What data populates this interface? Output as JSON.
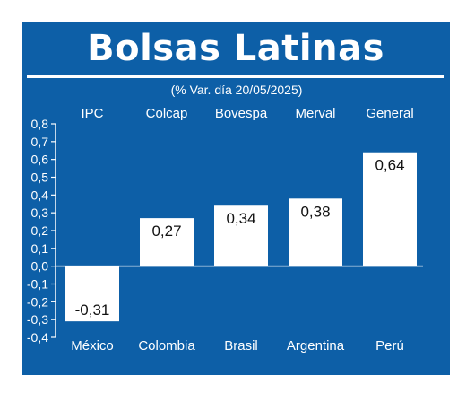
{
  "title": "Bolsas Latinas",
  "colors": {
    "background": "#0d5fa7",
    "bar": "#ffffff",
    "text": "#ffffff",
    "label_text": "#111111"
  },
  "chart_data": {
    "type": "bar",
    "title": "Bolsas Latinas",
    "subtitle": "(% Var. día 20/05/2025)",
    "index_names": [
      "IPC",
      "Colcap",
      "Bovespa",
      "Merval",
      "General"
    ],
    "categories": [
      "México",
      "Colombia",
      "Brasil",
      "Argentina",
      "Perú"
    ],
    "values": [
      -0.31,
      0.27,
      0.34,
      0.38,
      0.64
    ],
    "value_labels": [
      "-0,31",
      "0,27",
      "0,34",
      "0,38",
      "0,64"
    ],
    "ylim": [
      -0.4,
      0.8
    ],
    "y_ticks": [
      0.8,
      0.7,
      0.6,
      0.5,
      0.4,
      0.3,
      0.2,
      0.1,
      0.0,
      -0.1,
      -0.2,
      -0.3,
      -0.4
    ],
    "y_tick_labels": [
      "0,8",
      "0,7",
      "0,6",
      "0,5",
      "0,4",
      "0,3",
      "0,2",
      "0,1",
      "0,0",
      "-0,1",
      "-0,2",
      "-0,3",
      "-0,4"
    ],
    "xlabel": "",
    "ylabel": "",
    "grid": false,
    "legend": "none"
  }
}
